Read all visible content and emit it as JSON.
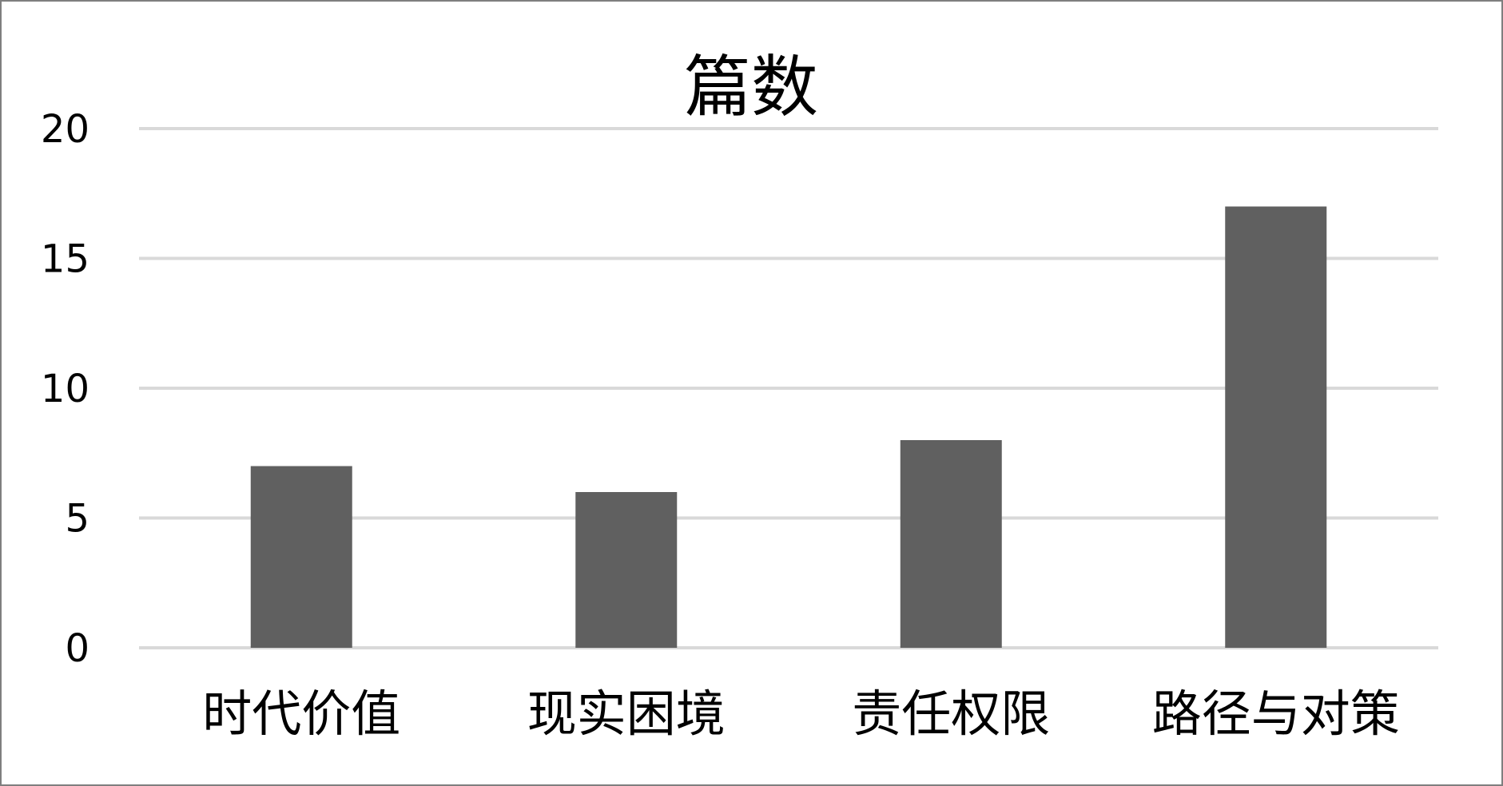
{
  "chart_data": {
    "type": "bar",
    "title": "篇数",
    "categories": [
      "时代价值",
      "现实困境",
      "责任权限",
      "路径与对策"
    ],
    "values": [
      7,
      6,
      8,
      17
    ],
    "xlabel": "",
    "ylabel": "",
    "ylim": [
      0,
      20
    ],
    "yticks": [
      0,
      5,
      10,
      15,
      20
    ],
    "grid": true,
    "legend": "none",
    "bar_color": "#606060",
    "grid_color": "#d9d9d9"
  }
}
